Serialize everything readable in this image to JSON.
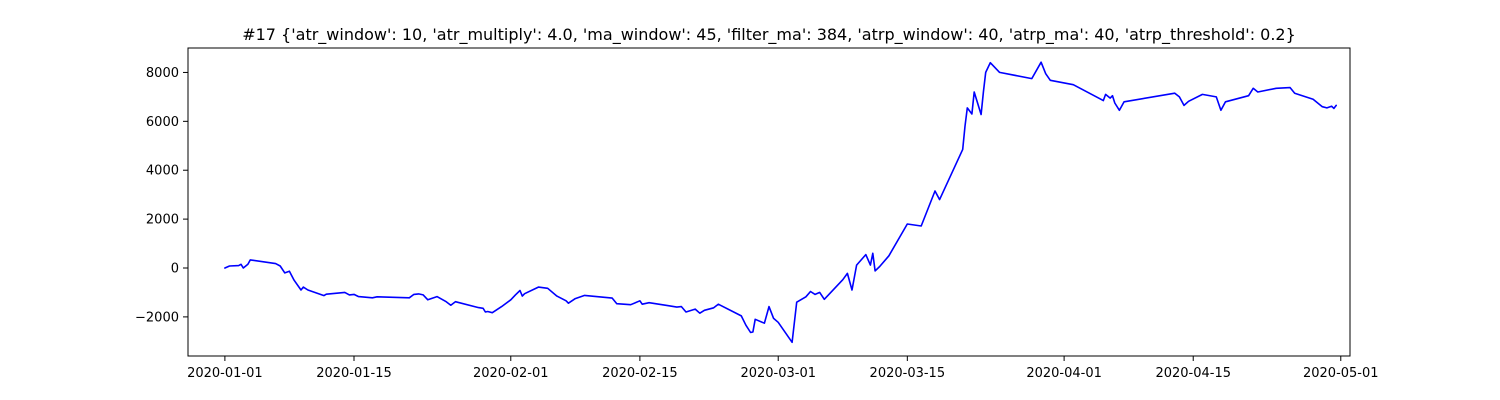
{
  "chart_data": {
    "type": "line",
    "title": "#17 {'atr_window': 10, 'atr_multiply': 4.0, 'ma_window': 45, 'filter_ma': 384, 'atrp_window': 40, 'atrp_ma': 40, 'atrp_threshold': 0.2}",
    "xlabel": "",
    "ylabel": "",
    "xlim": [
      "2019-12-28",
      "2020-05-02"
    ],
    "ylim": [
      -3600,
      9000
    ],
    "grid": false,
    "legend": "none",
    "x_ticks": [
      "2020-01-01",
      "2020-01-15",
      "2020-02-01",
      "2020-02-15",
      "2020-03-01",
      "2020-03-15",
      "2020-04-01",
      "2020-04-15",
      "2020-05-01"
    ],
    "y_ticks": [
      -2000,
      0,
      2000,
      4000,
      6000,
      8000
    ],
    "series": [
      {
        "color": "#0000ff",
        "points": [
          [
            "2020-01-01",
            0
          ],
          [
            "2020-01-01T12:00",
            80
          ],
          [
            "2020-01-02T12:00",
            100
          ],
          [
            "2020-01-02T18:00",
            150
          ],
          [
            "2020-01-03",
            0
          ],
          [
            "2020-01-03T12:00",
            150
          ],
          [
            "2020-01-03T18:00",
            330
          ],
          [
            "2020-01-06T12:00",
            180
          ],
          [
            "2020-01-07",
            80
          ],
          [
            "2020-01-07T12:00",
            -200
          ],
          [
            "2020-01-08",
            -130
          ],
          [
            "2020-01-08T12:00",
            -500
          ],
          [
            "2020-01-09T06:00",
            -900
          ],
          [
            "2020-01-09T12:00",
            -780
          ],
          [
            "2020-01-10",
            -900
          ],
          [
            "2020-01-11T18:00",
            -1130
          ],
          [
            "2020-01-12",
            -1070
          ],
          [
            "2020-01-14",
            -1000
          ],
          [
            "2020-01-14T12:00",
            -1100
          ],
          [
            "2020-01-15",
            -1080
          ],
          [
            "2020-01-15T12:00",
            -1170
          ],
          [
            "2020-01-17",
            -1220
          ],
          [
            "2020-01-17T12:00",
            -1180
          ],
          [
            "2020-01-21",
            -1220
          ],
          [
            "2020-01-21T12:00",
            -1080
          ],
          [
            "2020-01-22",
            -1060
          ],
          [
            "2020-01-22T12:00",
            -1100
          ],
          [
            "2020-01-23",
            -1300
          ],
          [
            "2020-01-24",
            -1170
          ],
          [
            "2020-01-25",
            -1380
          ],
          [
            "2020-01-25T12:00",
            -1520
          ],
          [
            "2020-01-26",
            -1380
          ],
          [
            "2020-01-28T12:00",
            -1620
          ],
          [
            "2020-01-29",
            -1650
          ],
          [
            "2020-01-29T06:00",
            -1800
          ],
          [
            "2020-01-29T12:00",
            -1780
          ],
          [
            "2020-01-30",
            -1830
          ],
          [
            "2020-01-31",
            -1580
          ],
          [
            "2020-02-01",
            -1300
          ],
          [
            "2020-02-01T12:00",
            -1100
          ],
          [
            "2020-02-02",
            -920
          ],
          [
            "2020-02-02T06:00",
            -1150
          ],
          [
            "2020-02-02T12:00",
            -1050
          ],
          [
            "2020-02-04",
            -780
          ],
          [
            "2020-02-05",
            -830
          ],
          [
            "2020-02-06",
            -1150
          ],
          [
            "2020-02-07",
            -1340
          ],
          [
            "2020-02-07T06:00",
            -1440
          ],
          [
            "2020-02-08",
            -1250
          ],
          [
            "2020-02-09",
            -1120
          ],
          [
            "2020-02-12",
            -1230
          ],
          [
            "2020-02-12T12:00",
            -1460
          ],
          [
            "2020-02-14",
            -1500
          ],
          [
            "2020-02-15",
            -1340
          ],
          [
            "2020-02-15T06:00",
            -1480
          ],
          [
            "2020-02-16",
            -1420
          ],
          [
            "2020-02-18",
            -1540
          ],
          [
            "2020-02-19",
            -1600
          ],
          [
            "2020-02-19T12:00",
            -1580
          ],
          [
            "2020-02-20",
            -1800
          ],
          [
            "2020-02-21",
            -1680
          ],
          [
            "2020-02-21T12:00",
            -1850
          ],
          [
            "2020-02-22",
            -1730
          ],
          [
            "2020-02-23",
            -1630
          ],
          [
            "2020-02-23T12:00",
            -1480
          ],
          [
            "2020-02-26",
            -1960
          ],
          [
            "2020-02-26T12:00",
            -2340
          ],
          [
            "2020-02-27",
            -2640
          ],
          [
            "2020-02-27T06:00",
            -2620
          ],
          [
            "2020-02-27T12:00",
            -2100
          ],
          [
            "2020-02-28T12:00",
            -2260
          ],
          [
            "2020-02-29",
            -1580
          ],
          [
            "2020-02-29T12:00",
            -2060
          ],
          [
            "2020-03-01",
            -2220
          ],
          [
            "2020-03-02T12:00",
            -3040
          ],
          [
            "2020-03-03",
            -1400
          ],
          [
            "2020-03-04",
            -1180
          ],
          [
            "2020-03-04T12:00",
            -960
          ],
          [
            "2020-03-05",
            -1080
          ],
          [
            "2020-03-05T12:00",
            -1000
          ],
          [
            "2020-03-06",
            -1280
          ],
          [
            "2020-03-08",
            -480
          ],
          [
            "2020-03-08T12:00",
            -220
          ],
          [
            "2020-03-09",
            -900
          ],
          [
            "2020-03-09T12:00",
            120
          ],
          [
            "2020-03-10T12:00",
            550
          ],
          [
            "2020-03-11",
            120
          ],
          [
            "2020-03-11T06:00",
            600
          ],
          [
            "2020-03-11T12:00",
            -120
          ],
          [
            "2020-03-12",
            60
          ],
          [
            "2020-03-13",
            500
          ],
          [
            "2020-03-15",
            1800
          ],
          [
            "2020-03-16T12:00",
            1720
          ],
          [
            "2020-03-18",
            3150
          ],
          [
            "2020-03-18T12:00",
            2800
          ],
          [
            "2020-03-21",
            4850
          ],
          [
            "2020-03-21T06:00",
            5800
          ],
          [
            "2020-03-21T12:00",
            6550
          ],
          [
            "2020-03-22",
            6300
          ],
          [
            "2020-03-22T06:00",
            7200
          ],
          [
            "2020-03-23",
            6280
          ],
          [
            "2020-03-23T06:00",
            7200
          ],
          [
            "2020-03-23T12:00",
            8000
          ],
          [
            "2020-03-24",
            8400
          ],
          [
            "2020-03-25",
            8000
          ],
          [
            "2020-03-28T12:00",
            7750
          ],
          [
            "2020-03-29T12:00",
            8420
          ],
          [
            "2020-03-30",
            7950
          ],
          [
            "2020-03-30T12:00",
            7680
          ],
          [
            "2020-04-02",
            7500
          ],
          [
            "2020-04-05",
            6900
          ],
          [
            "2020-04-05T06:00",
            6850
          ],
          [
            "2020-04-05T12:00",
            7100
          ],
          [
            "2020-04-06",
            6950
          ],
          [
            "2020-04-06T06:00",
            7050
          ],
          [
            "2020-04-06T12:00",
            6750
          ],
          [
            "2020-04-07",
            6450
          ],
          [
            "2020-04-07T12:00",
            6800
          ],
          [
            "2020-04-13",
            7150
          ],
          [
            "2020-04-13T12:00",
            7000
          ],
          [
            "2020-04-14",
            6650
          ],
          [
            "2020-04-14T12:00",
            6820
          ],
          [
            "2020-04-16",
            7100
          ],
          [
            "2020-04-17T12:00",
            7000
          ],
          [
            "2020-04-18",
            6450
          ],
          [
            "2020-04-18T12:00",
            6800
          ],
          [
            "2020-04-21",
            7050
          ],
          [
            "2020-04-21T12:00",
            7350
          ],
          [
            "2020-04-22",
            7200
          ],
          [
            "2020-04-24",
            7350
          ],
          [
            "2020-04-25T12:00",
            7380
          ],
          [
            "2020-04-26",
            7150
          ],
          [
            "2020-04-28",
            6900
          ],
          [
            "2020-04-29",
            6600
          ],
          [
            "2020-04-29T12:00",
            6550
          ],
          [
            "2020-04-30",
            6620
          ],
          [
            "2020-04-30T06:00",
            6530
          ],
          [
            "2020-04-30T12:00",
            6650
          ]
        ]
      }
    ]
  }
}
